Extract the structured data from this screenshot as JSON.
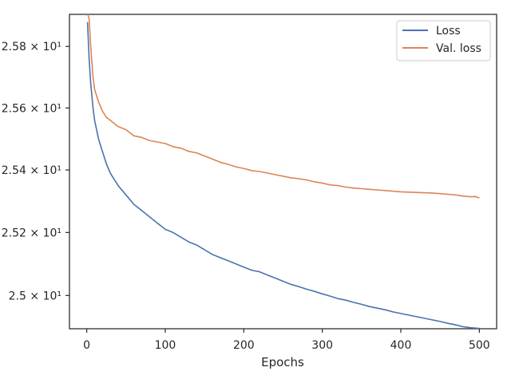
{
  "chart_data": {
    "type": "line",
    "title": "",
    "xlabel": "Epochs",
    "ylabel": "",
    "xlim": [
      -22,
      522
    ],
    "ylim": [
      24.895,
      25.905
    ],
    "yscale": "log",
    "grid": false,
    "legend_position": "top-right",
    "x_ticks": [
      0,
      100,
      200,
      300,
      400,
      500
    ],
    "x_tick_labels": [
      "0",
      "100",
      "200",
      "300",
      "400",
      "500"
    ],
    "y_ticks": [
      25.0,
      25.2,
      25.4,
      25.6,
      25.8
    ],
    "y_tick_labels": [
      "2.5 × 10¹",
      "2.52 × 10¹",
      "2.54 × 10¹",
      "2.56 × 10¹",
      "2.58 × 10¹"
    ],
    "x": [
      1,
      2,
      3,
      5,
      8,
      10,
      15,
      20,
      25,
      30,
      40,
      50,
      60,
      70,
      80,
      90,
      100,
      110,
      120,
      130,
      140,
      150,
      160,
      170,
      180,
      190,
      200,
      210,
      220,
      230,
      240,
      250,
      260,
      270,
      280,
      290,
      300,
      310,
      320,
      330,
      340,
      350,
      360,
      370,
      380,
      390,
      400,
      410,
      420,
      430,
      440,
      450,
      460,
      470,
      480,
      490,
      495,
      500
    ],
    "series": [
      {
        "name": "Loss",
        "color": "#4c72b0",
        "values": [
          25.88,
          25.82,
          25.76,
          25.68,
          25.6,
          25.56,
          25.5,
          25.46,
          25.42,
          25.39,
          25.35,
          25.32,
          25.29,
          25.27,
          25.25,
          25.23,
          25.21,
          25.2,
          25.185,
          25.17,
          25.16,
          25.145,
          25.13,
          25.12,
          25.11,
          25.1,
          25.09,
          25.08,
          25.075,
          25.065,
          25.055,
          25.045,
          25.035,
          25.028,
          25.02,
          25.013,
          25.005,
          24.998,
          24.99,
          24.985,
          24.978,
          24.972,
          24.965,
          24.96,
          24.955,
          24.948,
          24.943,
          24.938,
          24.933,
          24.928,
          24.923,
          24.918,
          24.912,
          24.907,
          24.901,
          24.898,
          24.897,
          24.896
        ]
      },
      {
        "name": "Val. loss",
        "color": "#dd8452",
        "values": [
          25.905,
          25.9,
          25.89,
          25.8,
          25.7,
          25.66,
          25.62,
          25.59,
          25.57,
          25.56,
          25.54,
          25.53,
          25.51,
          25.505,
          25.495,
          25.49,
          25.485,
          25.475,
          25.47,
          25.46,
          25.455,
          25.445,
          25.435,
          25.425,
          25.418,
          25.41,
          25.405,
          25.398,
          25.395,
          25.39,
          25.385,
          25.38,
          25.375,
          25.372,
          25.368,
          25.362,
          25.358,
          25.352,
          25.35,
          25.345,
          25.342,
          25.34,
          25.338,
          25.336,
          25.334,
          25.332,
          25.33,
          25.329,
          25.328,
          25.327,
          25.326,
          25.324,
          25.322,
          25.32,
          25.316,
          25.314,
          25.315,
          25.31
        ]
      }
    ]
  }
}
